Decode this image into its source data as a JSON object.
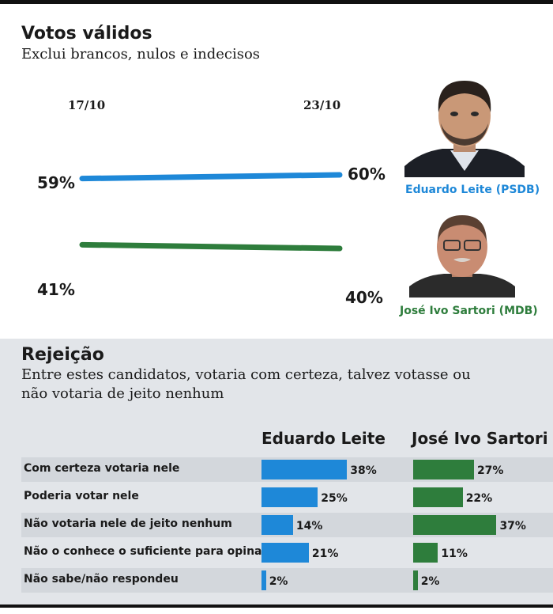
{
  "header": {
    "title": "Votos válidos",
    "subtitle": "Exclui brancos, nulos e indecisos"
  },
  "colors": {
    "leite": "#1e88d8",
    "sartori": "#2e7d3c",
    "panel": "#e2e5e9"
  },
  "candidates": [
    {
      "name": "Eduardo Leite (PSDB)",
      "photo": "eduardo-leite-photo"
    },
    {
      "name": "José Ivo Sartori (MDB)",
      "photo": "jose-ivo-sartori-photo"
    }
  ],
  "rejection": {
    "title": "Rejeição",
    "subtitle": "Entre estes candidatos, votaria com certeza, talvez votasse ou não votaria de jeito nenhum",
    "columns": [
      "Eduardo Leite",
      "José Ivo Sartori"
    ]
  },
  "chart_data": [
    {
      "type": "line",
      "title": "Votos válidos",
      "subtitle": "Exclui brancos, nulos e indecisos",
      "x": [
        "17/10",
        "23/10"
      ],
      "series": [
        {
          "name": "Eduardo Leite (PSDB)",
          "values": [
            59,
            60
          ],
          "labels": [
            "59%",
            "60%"
          ],
          "color": "#1e88d8"
        },
        {
          "name": "José Ivo Sartori (MDB)",
          "values": [
            41,
            40
          ],
          "labels": [
            "41%",
            "40%"
          ],
          "color": "#2e7d3c"
        }
      ],
      "grid": false,
      "legend": "right"
    },
    {
      "type": "bar",
      "title": "Rejeição",
      "categories": [
        "Com certeza votaria nele",
        "Poderia votar nele",
        "Não votaria nele de jeito nenhum",
        "Não o conhece o suficiente para opinar",
        "Não sabe/não respondeu"
      ],
      "series": [
        {
          "name": "Eduardo Leite",
          "values": [
            38,
            25,
            14,
            21,
            2
          ],
          "labels": [
            "38%",
            "25%",
            "14%",
            "21%",
            "2%"
          ],
          "color": "#1e88d8"
        },
        {
          "name": "José Ivo Sartori",
          "values": [
            27,
            22,
            37,
            11,
            2
          ],
          "labels": [
            "27%",
            "22%",
            "37%",
            "11%",
            "2%"
          ],
          "color": "#2e7d3c"
        }
      ]
    }
  ]
}
